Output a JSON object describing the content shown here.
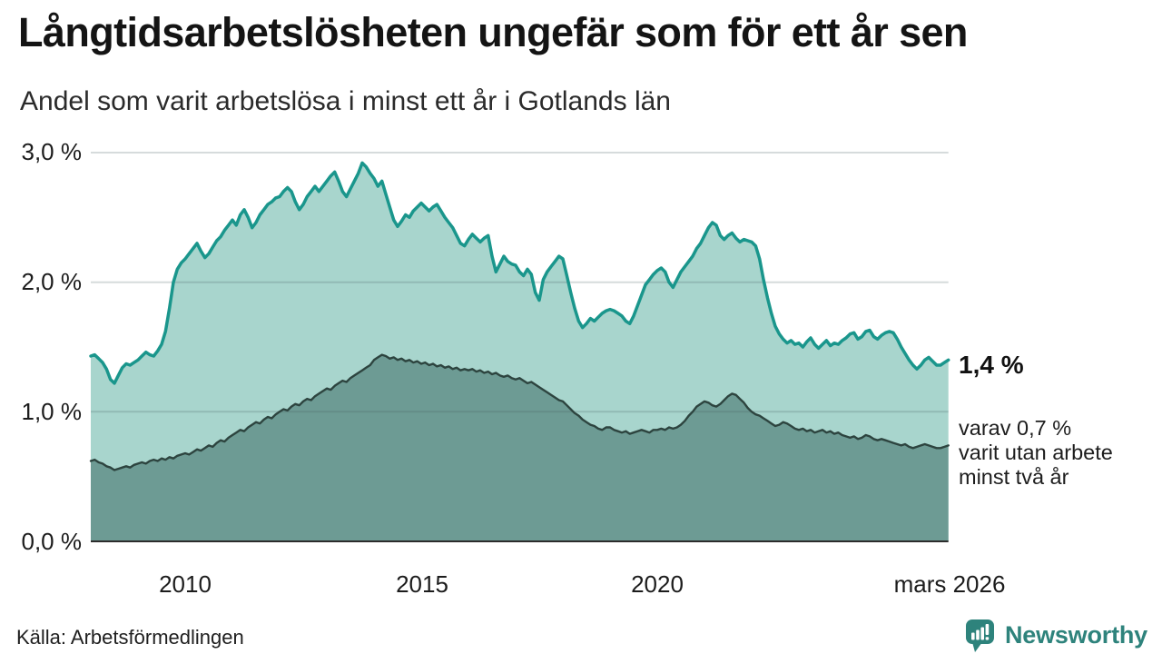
{
  "header": {
    "title": "Långtidsarbetslösheten ungefär som för ett år sen",
    "subtitle": "Andel som varit arbetslösa i minst ett år i Gotlands län"
  },
  "annotations": {
    "latest_total": "1,4 %",
    "detail": "varav 0,7 %\nvarit utan arbete\nminst två år"
  },
  "footer": {
    "source": "Källa: Arbetsförmedlingen",
    "brand": "Newsworthy",
    "brand_icon": "newsworthy-bubble-chart-icon"
  },
  "colors": {
    "accent_line": "#1a968c",
    "accent_fill": "#a8d5cd",
    "secondary_line": "#2d443f",
    "secondary_fill": "#6d9b94",
    "grid": "rgba(70,90,95,0.22)",
    "axis": "#2c2c2c",
    "brand": "#2e837c"
  },
  "chart_data": {
    "type": "area",
    "title": "Långtidsarbetslösheten ungefär som för ett år sen",
    "subtitle": "Andel som varit arbetslösa i minst ett år i Gotlands län",
    "x_domain": [
      2008.0,
      2026.1667
    ],
    "x_step_months": 1,
    "ylim": [
      0,
      3.0
    ],
    "grid": true,
    "legend_position": "none",
    "y_ticks": [
      {
        "y": 3,
        "label": "3,0 %"
      },
      {
        "y": 2,
        "label": "2,0 %"
      },
      {
        "y": 1,
        "label": "1,0 %"
      },
      {
        "y": 0,
        "label": "0,0 %"
      }
    ],
    "x_ticks": [
      {
        "x": 2010,
        "label": "2010"
      },
      {
        "x": 2015,
        "label": "2015"
      },
      {
        "x": 2020,
        "label": "2020"
      },
      {
        "x": 2026.1667,
        "label": "mars 2026"
      }
    ],
    "series": [
      {
        "name": "Andel arbetslösa minst ett år",
        "color": "#1a968c",
        "fill": "#a8d5cd",
        "line_width": 3.5,
        "end_label": "1,4 %",
        "values": [
          1.43,
          1.44,
          1.41,
          1.38,
          1.33,
          1.25,
          1.22,
          1.28,
          1.34,
          1.37,
          1.36,
          1.38,
          1.4,
          1.43,
          1.46,
          1.44,
          1.43,
          1.47,
          1.52,
          1.62,
          1.8,
          2.0,
          2.1,
          2.15,
          2.18,
          2.22,
          2.26,
          2.3,
          2.24,
          2.19,
          2.22,
          2.27,
          2.32,
          2.35,
          2.4,
          2.44,
          2.48,
          2.44,
          2.52,
          2.56,
          2.5,
          2.42,
          2.46,
          2.52,
          2.56,
          2.6,
          2.62,
          2.65,
          2.66,
          2.7,
          2.73,
          2.7,
          2.62,
          2.56,
          2.6,
          2.66,
          2.7,
          2.74,
          2.7,
          2.74,
          2.78,
          2.82,
          2.85,
          2.78,
          2.7,
          2.66,
          2.72,
          2.78,
          2.84,
          2.92,
          2.89,
          2.84,
          2.8,
          2.74,
          2.78,
          2.68,
          2.58,
          2.48,
          2.43,
          2.47,
          2.52,
          2.5,
          2.55,
          2.58,
          2.61,
          2.58,
          2.55,
          2.58,
          2.6,
          2.55,
          2.5,
          2.46,
          2.42,
          2.36,
          2.3,
          2.28,
          2.33,
          2.37,
          2.34,
          2.31,
          2.34,
          2.36,
          2.2,
          2.08,
          2.14,
          2.2,
          2.16,
          2.14,
          2.13,
          2.08,
          2.05,
          2.1,
          2.06,
          1.92,
          1.86,
          2.02,
          2.08,
          2.12,
          2.16,
          2.2,
          2.18,
          2.05,
          1.92,
          1.8,
          1.7,
          1.65,
          1.68,
          1.72,
          1.7,
          1.73,
          1.76,
          1.78,
          1.79,
          1.78,
          1.76,
          1.74,
          1.7,
          1.68,
          1.74,
          1.82,
          1.9,
          1.98,
          2.02,
          2.06,
          2.09,
          2.11,
          2.08,
          2.0,
          1.96,
          2.02,
          2.08,
          2.12,
          2.16,
          2.2,
          2.26,
          2.3,
          2.36,
          2.42,
          2.46,
          2.44,
          2.36,
          2.33,
          2.36,
          2.38,
          2.34,
          2.31,
          2.33,
          2.32,
          2.31,
          2.28,
          2.18,
          2.02,
          1.88,
          1.76,
          1.66,
          1.6,
          1.56,
          1.53,
          1.55,
          1.52,
          1.53,
          1.5,
          1.54,
          1.57,
          1.52,
          1.49,
          1.52,
          1.55,
          1.51,
          1.53,
          1.52,
          1.55,
          1.57,
          1.6,
          1.61,
          1.56,
          1.58,
          1.62,
          1.63,
          1.58,
          1.56,
          1.59,
          1.61,
          1.62,
          1.61,
          1.56,
          1.5,
          1.45,
          1.4,
          1.36,
          1.33,
          1.36,
          1.4,
          1.42,
          1.39,
          1.36,
          1.36,
          1.38,
          1.4
        ]
      },
      {
        "name": "varav utan arbete minst två år",
        "color": "#2d443f",
        "fill": "#6d9b94",
        "line_width": 2.4,
        "end_label": "0,7 %",
        "values": [
          0.62,
          0.63,
          0.61,
          0.6,
          0.58,
          0.57,
          0.55,
          0.56,
          0.57,
          0.58,
          0.57,
          0.59,
          0.6,
          0.61,
          0.6,
          0.62,
          0.63,
          0.62,
          0.64,
          0.63,
          0.65,
          0.64,
          0.66,
          0.67,
          0.68,
          0.67,
          0.69,
          0.71,
          0.7,
          0.72,
          0.74,
          0.73,
          0.76,
          0.78,
          0.77,
          0.8,
          0.82,
          0.84,
          0.86,
          0.85,
          0.88,
          0.9,
          0.92,
          0.91,
          0.94,
          0.96,
          0.95,
          0.98,
          1.0,
          1.02,
          1.01,
          1.04,
          1.06,
          1.05,
          1.08,
          1.1,
          1.09,
          1.12,
          1.14,
          1.16,
          1.18,
          1.17,
          1.2,
          1.22,
          1.24,
          1.23,
          1.26,
          1.28,
          1.3,
          1.32,
          1.34,
          1.36,
          1.4,
          1.42,
          1.44,
          1.43,
          1.41,
          1.42,
          1.4,
          1.41,
          1.39,
          1.4,
          1.38,
          1.39,
          1.37,
          1.38,
          1.36,
          1.37,
          1.35,
          1.36,
          1.34,
          1.35,
          1.33,
          1.34,
          1.32,
          1.33,
          1.32,
          1.33,
          1.31,
          1.32,
          1.3,
          1.31,
          1.29,
          1.3,
          1.28,
          1.27,
          1.28,
          1.26,
          1.25,
          1.26,
          1.24,
          1.22,
          1.23,
          1.21,
          1.19,
          1.17,
          1.15,
          1.13,
          1.11,
          1.09,
          1.08,
          1.05,
          1.02,
          0.99,
          0.97,
          0.94,
          0.92,
          0.9,
          0.89,
          0.87,
          0.86,
          0.88,
          0.88,
          0.86,
          0.85,
          0.84,
          0.85,
          0.83,
          0.84,
          0.85,
          0.86,
          0.85,
          0.84,
          0.86,
          0.86,
          0.87,
          0.86,
          0.88,
          0.87,
          0.88,
          0.9,
          0.93,
          0.97,
          1.0,
          1.04,
          1.06,
          1.08,
          1.07,
          1.05,
          1.04,
          1.06,
          1.09,
          1.12,
          1.14,
          1.13,
          1.1,
          1.07,
          1.03,
          1.0,
          0.98,
          0.97,
          0.95,
          0.93,
          0.91,
          0.89,
          0.9,
          0.92,
          0.91,
          0.89,
          0.87,
          0.86,
          0.87,
          0.85,
          0.86,
          0.84,
          0.85,
          0.86,
          0.84,
          0.85,
          0.83,
          0.84,
          0.82,
          0.81,
          0.8,
          0.81,
          0.79,
          0.8,
          0.82,
          0.81,
          0.79,
          0.78,
          0.79,
          0.78,
          0.77,
          0.76,
          0.75,
          0.74,
          0.75,
          0.73,
          0.72,
          0.73,
          0.74,
          0.75,
          0.74,
          0.73,
          0.72,
          0.72,
          0.73,
          0.74
        ]
      }
    ],
    "source": "Källa: Arbetsförmedlingen"
  }
}
